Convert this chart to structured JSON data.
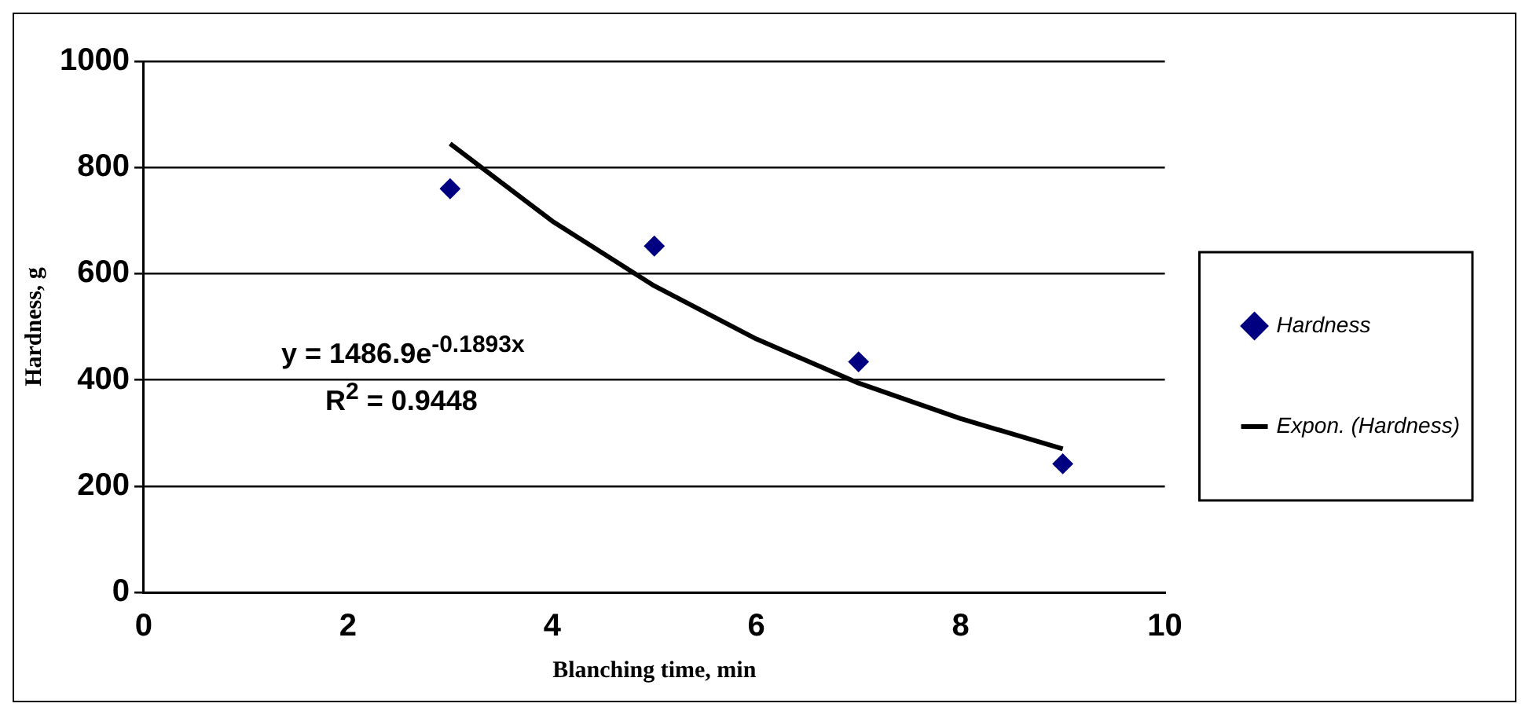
{
  "chart_data": {
    "type": "scatter",
    "xlabel": "Blanching time, min",
    "ylabel": "Hardness, g",
    "xlim": [
      0,
      10
    ],
    "xticks": [
      0,
      2,
      4,
      6,
      8,
      10
    ],
    "ylim": [
      0,
      1000
    ],
    "yticks": [
      0,
      200,
      400,
      600,
      800,
      1000
    ],
    "grid": "y",
    "legend": "right",
    "series": [
      {
        "name": "Hardness",
        "type": "scatter",
        "marker": "diamond",
        "color": "#000080",
        "x": [
          3,
          5,
          7,
          9
        ],
        "values": [
          760,
          652,
          434,
          242
        ]
      },
      {
        "name": "Expon. (Hardness)",
        "type": "line",
        "marker": "none",
        "line_style": "solid",
        "color": "#000000",
        "x": [
          3,
          4,
          5,
          6,
          7,
          8,
          9
        ],
        "values": [
          845,
          699,
          577,
          477,
          394,
          327,
          270
        ]
      }
    ],
    "annotations": [
      "y = 1486.9e$^{-0.1893x}$",
      "R$^{2}$ = 0.9448"
    ]
  }
}
